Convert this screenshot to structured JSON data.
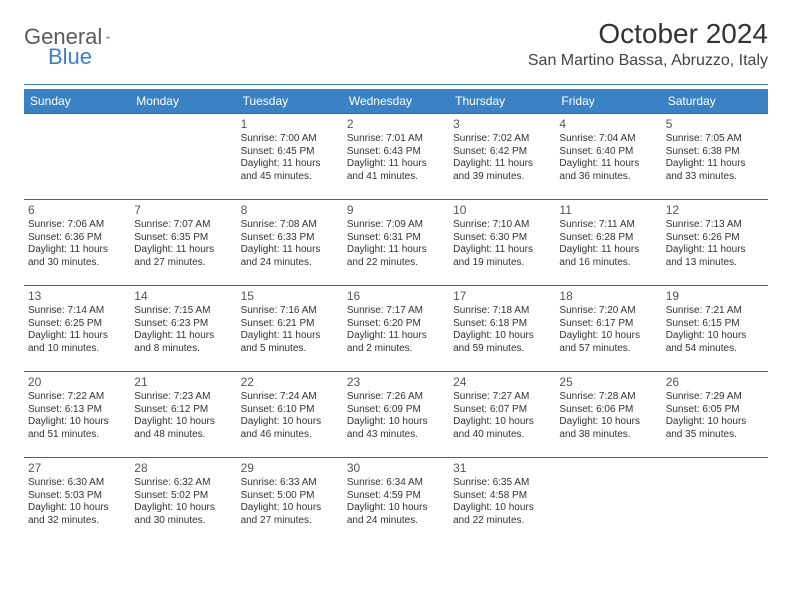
{
  "brand": {
    "part1": "General",
    "part2": "Blue"
  },
  "title": "October 2024",
  "location": "San Martino Bassa, Abruzzo, Italy",
  "colors": {
    "accent": "#3b82c4",
    "rule": "#2d6aa0",
    "text": "#333333"
  },
  "dayHeaders": [
    "Sunday",
    "Monday",
    "Tuesday",
    "Wednesday",
    "Thursday",
    "Friday",
    "Saturday"
  ],
  "weeks": [
    [
      null,
      null,
      {
        "n": "1",
        "sr": "Sunrise: 7:00 AM",
        "ss": "Sunset: 6:45 PM",
        "dl": "Daylight: 11 hours and 45 minutes."
      },
      {
        "n": "2",
        "sr": "Sunrise: 7:01 AM",
        "ss": "Sunset: 6:43 PM",
        "dl": "Daylight: 11 hours and 41 minutes."
      },
      {
        "n": "3",
        "sr": "Sunrise: 7:02 AM",
        "ss": "Sunset: 6:42 PM",
        "dl": "Daylight: 11 hours and 39 minutes."
      },
      {
        "n": "4",
        "sr": "Sunrise: 7:04 AM",
        "ss": "Sunset: 6:40 PM",
        "dl": "Daylight: 11 hours and 36 minutes."
      },
      {
        "n": "5",
        "sr": "Sunrise: 7:05 AM",
        "ss": "Sunset: 6:38 PM",
        "dl": "Daylight: 11 hours and 33 minutes."
      }
    ],
    [
      {
        "n": "6",
        "sr": "Sunrise: 7:06 AM",
        "ss": "Sunset: 6:36 PM",
        "dl": "Daylight: 11 hours and 30 minutes."
      },
      {
        "n": "7",
        "sr": "Sunrise: 7:07 AM",
        "ss": "Sunset: 6:35 PM",
        "dl": "Daylight: 11 hours and 27 minutes."
      },
      {
        "n": "8",
        "sr": "Sunrise: 7:08 AM",
        "ss": "Sunset: 6:33 PM",
        "dl": "Daylight: 11 hours and 24 minutes."
      },
      {
        "n": "9",
        "sr": "Sunrise: 7:09 AM",
        "ss": "Sunset: 6:31 PM",
        "dl": "Daylight: 11 hours and 22 minutes."
      },
      {
        "n": "10",
        "sr": "Sunrise: 7:10 AM",
        "ss": "Sunset: 6:30 PM",
        "dl": "Daylight: 11 hours and 19 minutes."
      },
      {
        "n": "11",
        "sr": "Sunrise: 7:11 AM",
        "ss": "Sunset: 6:28 PM",
        "dl": "Daylight: 11 hours and 16 minutes."
      },
      {
        "n": "12",
        "sr": "Sunrise: 7:13 AM",
        "ss": "Sunset: 6:26 PM",
        "dl": "Daylight: 11 hours and 13 minutes."
      }
    ],
    [
      {
        "n": "13",
        "sr": "Sunrise: 7:14 AM",
        "ss": "Sunset: 6:25 PM",
        "dl": "Daylight: 11 hours and 10 minutes."
      },
      {
        "n": "14",
        "sr": "Sunrise: 7:15 AM",
        "ss": "Sunset: 6:23 PM",
        "dl": "Daylight: 11 hours and 8 minutes."
      },
      {
        "n": "15",
        "sr": "Sunrise: 7:16 AM",
        "ss": "Sunset: 6:21 PM",
        "dl": "Daylight: 11 hours and 5 minutes."
      },
      {
        "n": "16",
        "sr": "Sunrise: 7:17 AM",
        "ss": "Sunset: 6:20 PM",
        "dl": "Daylight: 11 hours and 2 minutes."
      },
      {
        "n": "17",
        "sr": "Sunrise: 7:18 AM",
        "ss": "Sunset: 6:18 PM",
        "dl": "Daylight: 10 hours and 59 minutes."
      },
      {
        "n": "18",
        "sr": "Sunrise: 7:20 AM",
        "ss": "Sunset: 6:17 PM",
        "dl": "Daylight: 10 hours and 57 minutes."
      },
      {
        "n": "19",
        "sr": "Sunrise: 7:21 AM",
        "ss": "Sunset: 6:15 PM",
        "dl": "Daylight: 10 hours and 54 minutes."
      }
    ],
    [
      {
        "n": "20",
        "sr": "Sunrise: 7:22 AM",
        "ss": "Sunset: 6:13 PM",
        "dl": "Daylight: 10 hours and 51 minutes."
      },
      {
        "n": "21",
        "sr": "Sunrise: 7:23 AM",
        "ss": "Sunset: 6:12 PM",
        "dl": "Daylight: 10 hours and 48 minutes."
      },
      {
        "n": "22",
        "sr": "Sunrise: 7:24 AM",
        "ss": "Sunset: 6:10 PM",
        "dl": "Daylight: 10 hours and 46 minutes."
      },
      {
        "n": "23",
        "sr": "Sunrise: 7:26 AM",
        "ss": "Sunset: 6:09 PM",
        "dl": "Daylight: 10 hours and 43 minutes."
      },
      {
        "n": "24",
        "sr": "Sunrise: 7:27 AM",
        "ss": "Sunset: 6:07 PM",
        "dl": "Daylight: 10 hours and 40 minutes."
      },
      {
        "n": "25",
        "sr": "Sunrise: 7:28 AM",
        "ss": "Sunset: 6:06 PM",
        "dl": "Daylight: 10 hours and 38 minutes."
      },
      {
        "n": "26",
        "sr": "Sunrise: 7:29 AM",
        "ss": "Sunset: 6:05 PM",
        "dl": "Daylight: 10 hours and 35 minutes."
      }
    ],
    [
      {
        "n": "27",
        "sr": "Sunrise: 6:30 AM",
        "ss": "Sunset: 5:03 PM",
        "dl": "Daylight: 10 hours and 32 minutes."
      },
      {
        "n": "28",
        "sr": "Sunrise: 6:32 AM",
        "ss": "Sunset: 5:02 PM",
        "dl": "Daylight: 10 hours and 30 minutes."
      },
      {
        "n": "29",
        "sr": "Sunrise: 6:33 AM",
        "ss": "Sunset: 5:00 PM",
        "dl": "Daylight: 10 hours and 27 minutes."
      },
      {
        "n": "30",
        "sr": "Sunrise: 6:34 AM",
        "ss": "Sunset: 4:59 PM",
        "dl": "Daylight: 10 hours and 24 minutes."
      },
      {
        "n": "31",
        "sr": "Sunrise: 6:35 AM",
        "ss": "Sunset: 4:58 PM",
        "dl": "Daylight: 10 hours and 22 minutes."
      },
      null,
      null
    ]
  ]
}
